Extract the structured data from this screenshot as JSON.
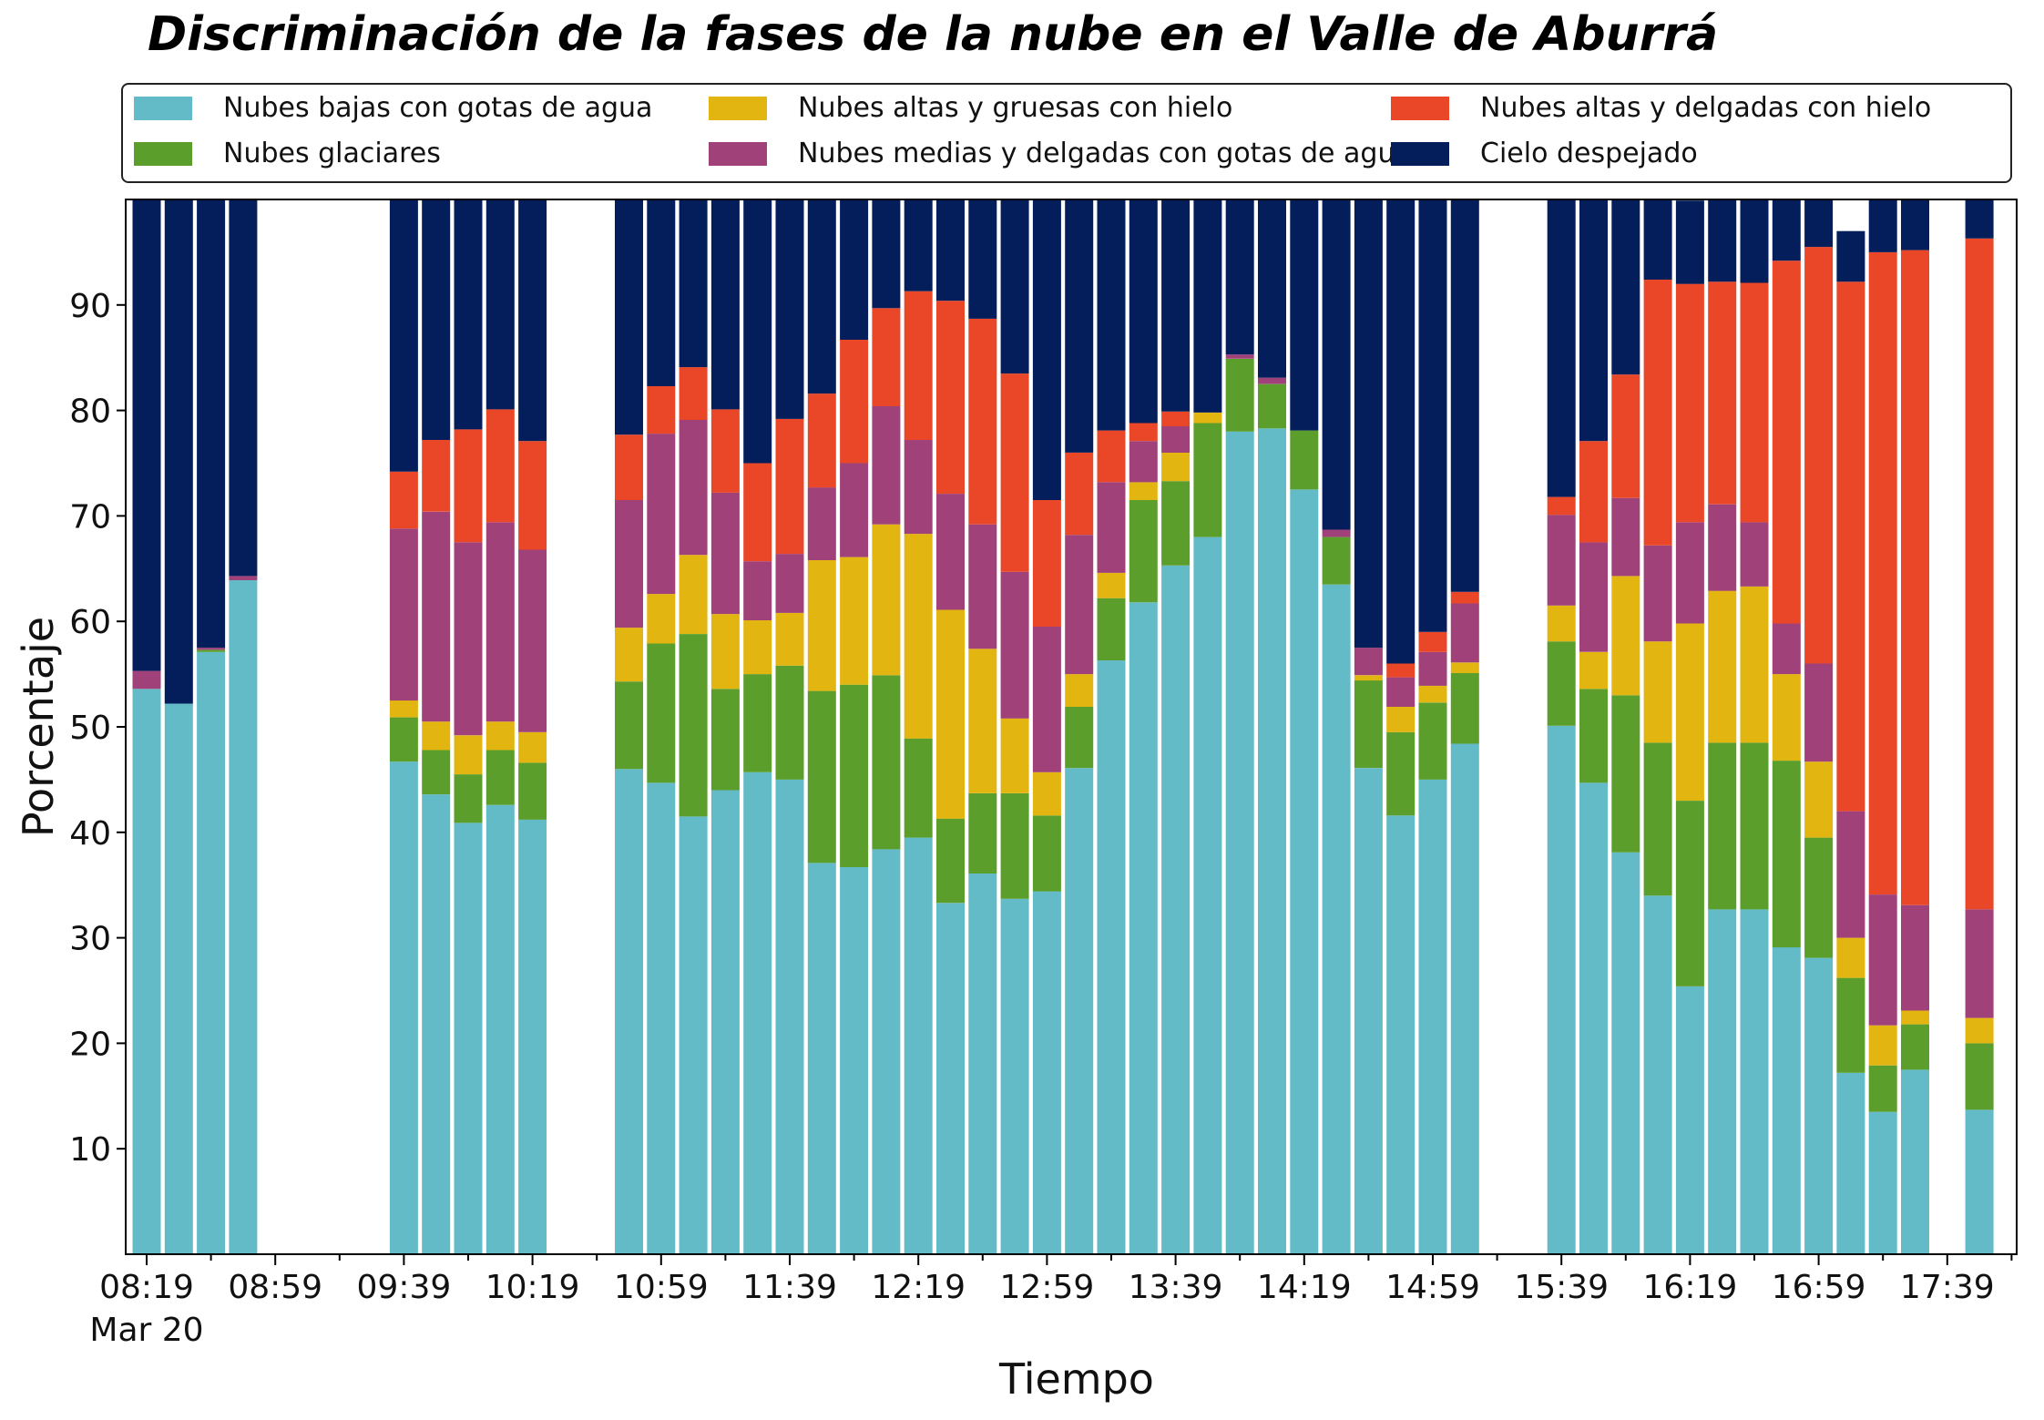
{
  "chart_data": {
    "type": "bar",
    "stacked": true,
    "title": "Discriminación de la fases de la nube en el Valle de Aburrá",
    "xlabel": "Tiempo",
    "ylabel": "Porcentaje",
    "ylim": [
      0,
      100
    ],
    "yticks": [
      10,
      20,
      30,
      40,
      50,
      60,
      70,
      80,
      90
    ],
    "x_start": "08:19",
    "x_step_minutes": 10,
    "x_slots": 59,
    "x_tick_labels": [
      "08:19",
      "08:59",
      "09:39",
      "10:19",
      "10:59",
      "11:39",
      "12:19",
      "12:59",
      "13:39",
      "14:19",
      "14:59",
      "15:39",
      "16:19",
      "16:59",
      "17:39"
    ],
    "x_tick_label_indices": [
      0,
      4,
      8,
      12,
      16,
      20,
      24,
      28,
      32,
      36,
      40,
      44,
      48,
      52,
      56
    ],
    "x_date_label": "Mar 20",
    "legend": {
      "position": "top",
      "columns": 3
    },
    "grid": false,
    "series": [
      {
        "name": "Nubes bajas con gotas de agua",
        "color": "#63bbc8",
        "values": [
          53.6,
          52.2,
          57.1,
          63.9,
          null,
          null,
          null,
          null,
          46.7,
          43.6,
          40.9,
          42.6,
          41.2,
          null,
          null,
          46.0,
          44.7,
          41.5,
          44.0,
          45.7,
          45.0,
          37.1,
          36.7,
          38.4,
          39.5,
          33.3,
          36.1,
          33.7,
          34.4,
          46.1,
          56.3,
          61.8,
          65.3,
          68.0,
          78.0,
          78.3,
          72.5,
          63.5,
          46.1,
          41.6,
          45.0,
          48.4,
          null,
          null,
          50.1,
          44.7,
          38.1,
          34.0,
          25.4,
          32.7,
          32.7,
          29.1,
          28.1,
          17.2,
          13.5,
          17.5,
          null,
          13.7,
          null
        ]
      },
      {
        "name": "Nubes glaciares",
        "color": "#5c9e2c",
        "values": [
          0,
          0,
          0.2,
          0,
          null,
          null,
          null,
          null,
          4.2,
          4.2,
          4.6,
          5.2,
          5.4,
          null,
          null,
          8.3,
          13.2,
          17.3,
          9.6,
          9.3,
          10.8,
          16.3,
          17.3,
          16.5,
          9.4,
          8.0,
          7.6,
          10.0,
          7.2,
          5.8,
          5.9,
          9.7,
          8.0,
          10.8,
          6.9,
          4.2,
          5.6,
          4.5,
          8.3,
          7.9,
          7.3,
          6.7,
          null,
          null,
          8.0,
          8.9,
          14.9,
          14.5,
          17.6,
          15.8,
          15.8,
          17.7,
          11.4,
          9.0,
          4.4,
          4.3,
          null,
          6.3,
          null
        ]
      },
      {
        "name": "Nubes altas y gruesas con hielo",
        "color": "#e3b511",
        "values": [
          0,
          0,
          0,
          0,
          null,
          null,
          null,
          null,
          1.6,
          2.7,
          3.7,
          2.7,
          2.9,
          null,
          null,
          5.1,
          4.7,
          7.5,
          7.1,
          5.1,
          5.0,
          12.4,
          12.1,
          14.3,
          19.4,
          19.8,
          13.7,
          7.1,
          4.1,
          3.1,
          2.4,
          1.7,
          2.7,
          1.0,
          0,
          0,
          0,
          0,
          0.5,
          2.4,
          1.6,
          1.0,
          null,
          null,
          3.4,
          3.5,
          11.3,
          9.6,
          16.8,
          14.4,
          14.8,
          8.2,
          7.2,
          3.8,
          3.8,
          1.3,
          null,
          2.4,
          null
        ]
      },
      {
        "name": "Nubes medias y delgadas con gotas de agua",
        "color": "#a0417a",
        "values": [
          1.7,
          0,
          0.2,
          0.4,
          null,
          null,
          null,
          null,
          16.3,
          19.9,
          18.3,
          18.9,
          17.3,
          null,
          null,
          12.1,
          15.2,
          12.8,
          11.5,
          5.6,
          5.6,
          6.9,
          8.9,
          11.2,
          8.9,
          11.0,
          11.8,
          13.9,
          13.8,
          13.2,
          8.6,
          3.9,
          2.5,
          0,
          0.4,
          0.6,
          0,
          0.7,
          2.6,
          2.8,
          3.2,
          5.6,
          null,
          null,
          8.6,
          10.4,
          7.4,
          9.1,
          9.6,
          8.2,
          6.1,
          4.8,
          9.3,
          12.0,
          12.4,
          10.0,
          null,
          10.3,
          null
        ]
      },
      {
        "name": "Nubes altas y delgadas con hielo",
        "color": "#ea4729",
        "values": [
          0,
          0,
          0,
          0,
          null,
          null,
          null,
          null,
          5.4,
          6.8,
          10.7,
          10.7,
          10.3,
          null,
          null,
          6.2,
          4.5,
          5.0,
          7.9,
          9.3,
          12.8,
          8.9,
          11.7,
          9.3,
          14.1,
          18.3,
          19.5,
          18.8,
          12.0,
          7.8,
          4.9,
          1.7,
          1.4,
          0,
          0,
          0,
          0,
          0,
          0,
          1.3,
          1.9,
          1.1,
          null,
          null,
          1.7,
          9.6,
          11.7,
          25.2,
          22.6,
          21.1,
          22.7,
          34.4,
          39.5,
          50.2,
          60.9,
          62.1,
          null,
          63.6,
          null
        ]
      },
      {
        "name": "Cielo despejado",
        "color": "#041e5c",
        "values": [
          44.7,
          47.8,
          42.5,
          35.7,
          null,
          null,
          null,
          null,
          25.8,
          22.8,
          21.8,
          19.9,
          22.9,
          null,
          null,
          22.3,
          17.7,
          15.9,
          19.9,
          25.0,
          20.8,
          18.4,
          13.3,
          10.3,
          8.7,
          9.6,
          11.3,
          16.5,
          28.5,
          24.0,
          21.9,
          21.2,
          20.1,
          20.2,
          14.7,
          16.9,
          21.9,
          31.3,
          42.5,
          44.0,
          41.0,
          37.2,
          null,
          null,
          28.2,
          22.9,
          16.6,
          7.6,
          7.9,
          7.8,
          7.9,
          5.8,
          4.5,
          4.8,
          5.0,
          4.8,
          null,
          3.7,
          null
        ]
      }
    ]
  }
}
